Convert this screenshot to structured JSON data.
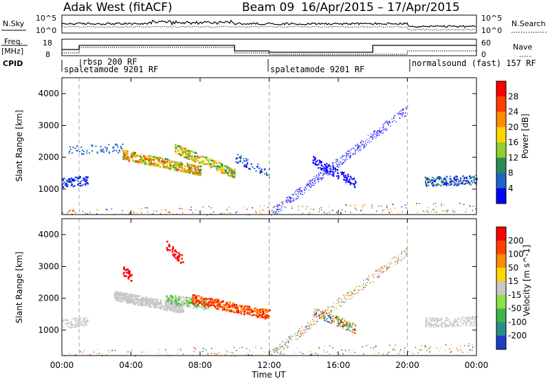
{
  "header": {
    "station": "Adak West (fitACF)",
    "beam": "Beam 09",
    "date_range": "16/Apr/2015 – 17/Apr/2015"
  },
  "panels": {
    "nsky": {
      "left_label": "N.Sky",
      "right_label": "N.Search",
      "left_ticks": [
        "10^5",
        "10^0"
      ],
      "right_ticks": [
        "10^5",
        "10^0"
      ]
    },
    "freq": {
      "left_label_1": "Freq.",
      "left_label_2": "[MHz]",
      "left_ticks": [
        "18",
        "8"
      ],
      "right_label": "Nave",
      "right_ticks": [
        "60",
        "0"
      ]
    },
    "cpid": {
      "label": "CPID",
      "modes": [
        "rbsp 200 RF",
        "spaletamode 9201 RF",
        "spaletamode 9201 RF",
        "normalsound (fast) 157 RF"
      ]
    }
  },
  "chart_data": [
    {
      "type": "heatmap",
      "name": "power",
      "ylabel": "Slant Range [km]",
      "ylim": [
        200,
        4500
      ],
      "yticks": [
        "1000",
        "2000",
        "3000",
        "4000"
      ],
      "colorbar_label": "Power [dB]",
      "colorbar_ticks": [
        "4",
        "8",
        "12",
        "16",
        "20",
        "24",
        "28"
      ],
      "colorbar_colors": [
        "#0000ff",
        "#1e64c8",
        "#2e8b57",
        "#90d030",
        "#ffd700",
        "#ff8c00",
        "#ff4000",
        "#ff0000"
      ]
    },
    {
      "type": "heatmap",
      "name": "velocity",
      "ylabel": "Slant Range [km]",
      "ylim": [
        200,
        4500
      ],
      "yticks": [
        "1000",
        "2000",
        "3000",
        "4000"
      ],
      "colorbar_label": "Velocity [m s^-1]",
      "colorbar_ticks": [
        "200",
        "100",
        "50",
        "15",
        "-15",
        "-50",
        "-100",
        "-200"
      ],
      "colorbar_colors": [
        "#1e3cc8",
        "#2e8b8b",
        "#3cb44b",
        "#8be04b",
        "#c8c8c8",
        "#ffd700",
        "#ff8c00",
        "#ff4000",
        "#ff0000"
      ]
    }
  ],
  "xaxis": {
    "label": "Time UT",
    "ticks": [
      "00:00",
      "04:00",
      "08:00",
      "12:00",
      "16:00",
      "20:00",
      "00:00"
    ]
  }
}
